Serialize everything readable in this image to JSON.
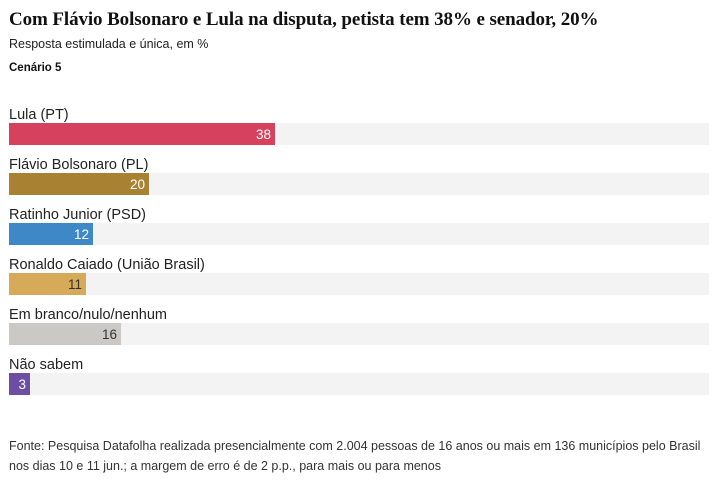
{
  "title": "Com Flávio Bolsonaro e Lula na disputa, petista tem 38% e senador, 20%",
  "subtitle": "Resposta estimulada e única, em %",
  "scenario": "Cenário 5",
  "source": "Fonte: Pesquisa Datafolha realizada presencialmente com 2.004 pessoas de 16 anos ou mais em 136 municípios pelo Brasil nos dias 10 e 11 jun.; a margem de erro é de 2 p.p., para mais ou para menos",
  "chart_data": {
    "type": "bar",
    "orientation": "horizontal",
    "categories": [
      "Lula (PT)",
      "Flávio Bolsonaro (PL)",
      "Ratinho Junior (PSD)",
      "Ronaldo Caiado (União Brasil)",
      "Em branco/nulo/nenhum",
      "Não sabem"
    ],
    "values": [
      38,
      20,
      12,
      11,
      16,
      3
    ],
    "colors": [
      "#d6415e",
      "#a98132",
      "#3f88c8",
      "#d6aa58",
      "#cbc9c5",
      "#6e4ea2"
    ],
    "label_colors": [
      "#ffffff",
      "#ffffff",
      "#ffffff",
      "#333333",
      "#333333",
      "#ffffff"
    ],
    "track_color": "#f3f3f3",
    "xlim": [
      0,
      100
    ],
    "grid": false,
    "legend": "none"
  }
}
